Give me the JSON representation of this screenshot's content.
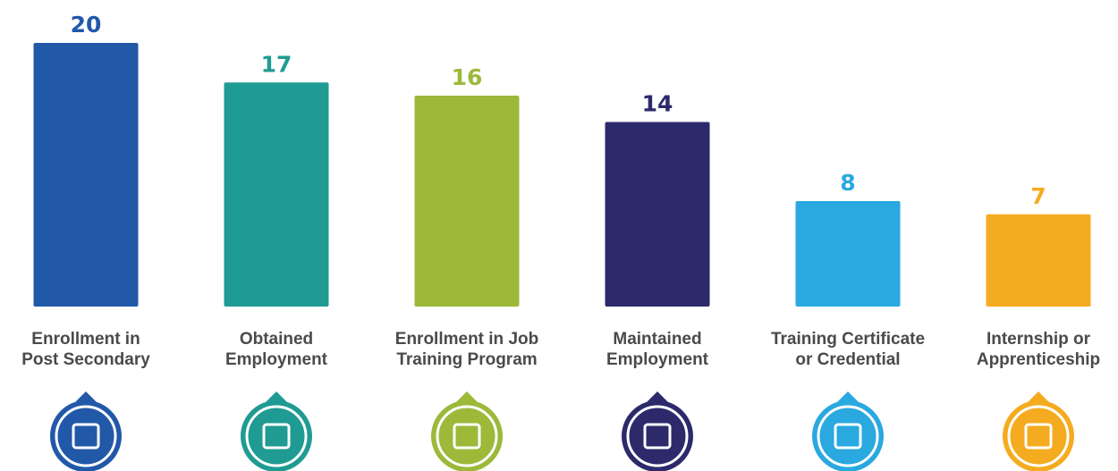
{
  "chart_data": {
    "type": "bar",
    "categories": [
      "Enrollment in\nPost Secondary",
      "Obtained\nEmployment",
      "Enrollment in Job\nTraining Program",
      "Maintained\nEmployment",
      "Training Certificate\nor Credential",
      "Internship or\nApprenticeship"
    ],
    "values": [
      20,
      17,
      16,
      14,
      8,
      7
    ],
    "colors": [
      "#2258a8",
      "#1f9b93",
      "#9cb93a",
      "#2c2a6b",
      "#2aa8e0",
      "#f5ab1f"
    ],
    "ylim": [
      0,
      20
    ]
  }
}
